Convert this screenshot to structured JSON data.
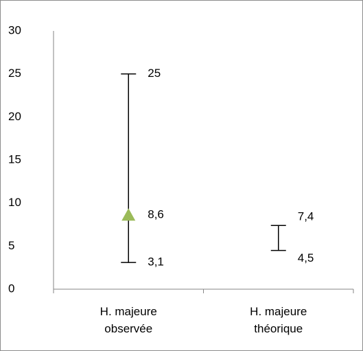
{
  "chart_data": {
    "type": "range",
    "categories": [
      "H. majeure observée",
      "H. majeure théorique"
    ],
    "high": {
      "values": [
        25,
        7.4
      ],
      "value_labels": [
        "25",
        "7,4"
      ]
    },
    "low": {
      "values": [
        3.1,
        4.5
      ],
      "value_labels": [
        "3,1",
        "4,5"
      ]
    },
    "marker": {
      "values": [
        8.6,
        null
      ],
      "value_labels": [
        "8,6",
        null
      ],
      "color": "#9bbb59"
    },
    "ylim": [
      0,
      30
    ],
    "yticks": [
      0,
      5,
      10,
      15,
      20,
      25,
      30
    ],
    "grid": false
  }
}
